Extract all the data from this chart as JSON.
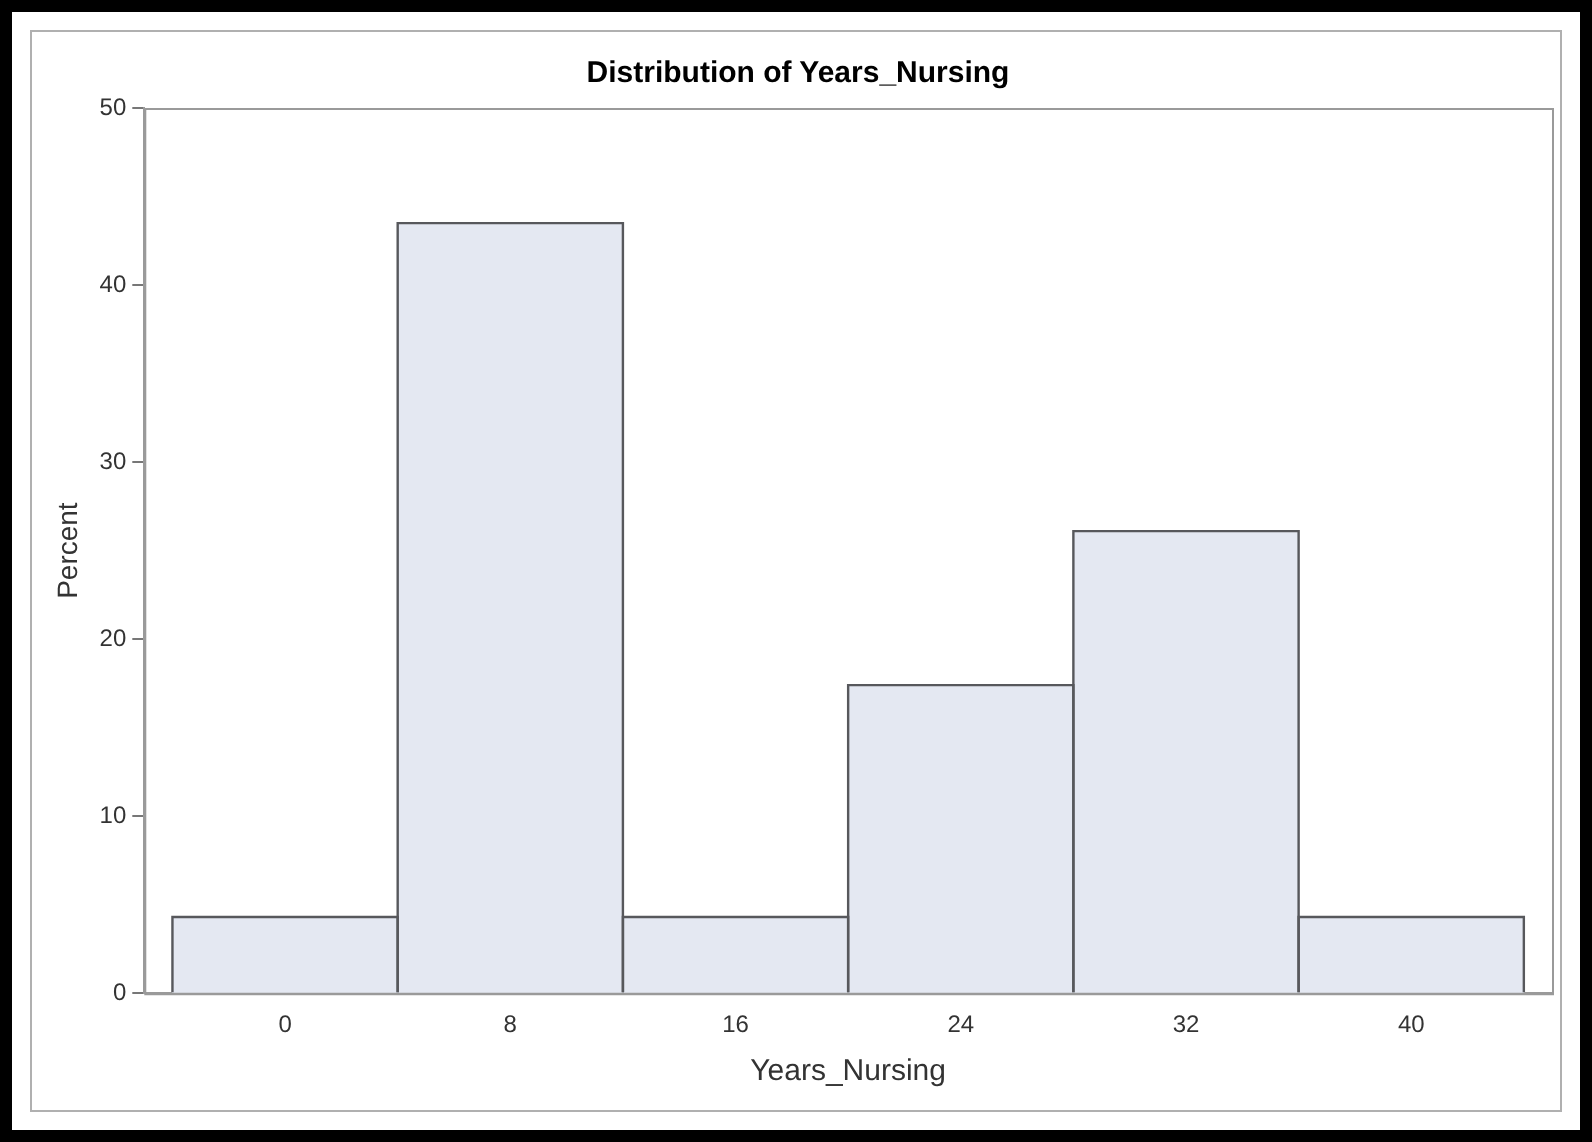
{
  "chart_data": {
    "type": "histogram",
    "title": "Distribution of Years_Nursing",
    "xlabel": "Years_Nursing",
    "ylabel": "Percent",
    "bins": [
      -4,
      4,
      12,
      20,
      28,
      36,
      44
    ],
    "values": [
      4.3,
      43.5,
      4.3,
      17.4,
      26.1,
      4.3
    ],
    "color": "#e4e8f2",
    "xlim": [
      -5,
      45
    ],
    "xticks": [
      0,
      8,
      16,
      24,
      32,
      40
    ],
    "ylim": [
      0,
      50
    ],
    "yticks": [
      0,
      10,
      20,
      30,
      40,
      50
    ],
    "grid": false,
    "legend": false
  }
}
